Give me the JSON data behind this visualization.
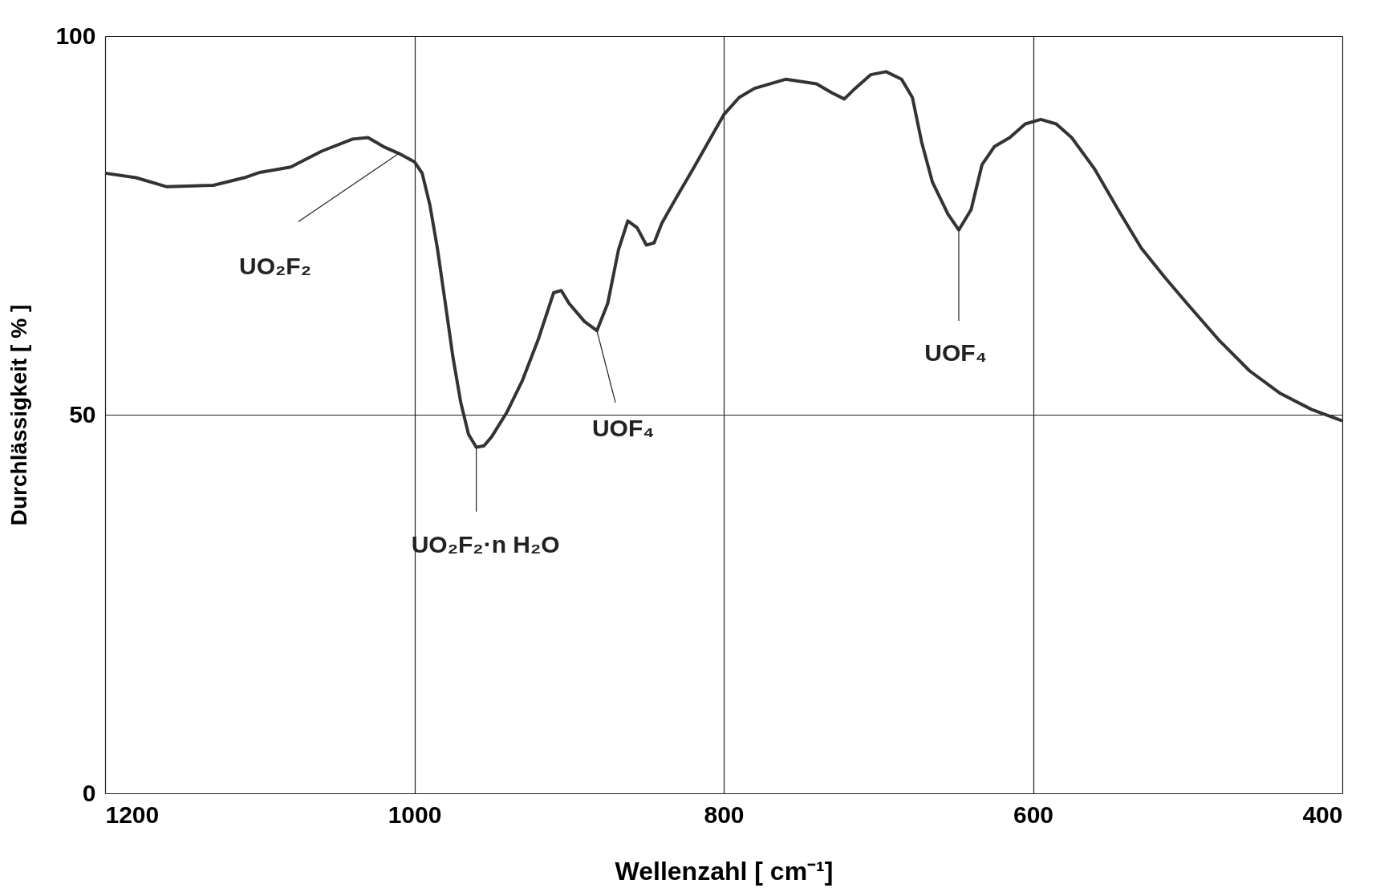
{
  "chart_data": {
    "type": "line",
    "xlabel": "Wellenzahl [ cm⁻¹]",
    "ylabel": "Durchlässigkeit [ % ]",
    "xlim": [
      1200,
      400
    ],
    "ylim": [
      0,
      100
    ],
    "xticks": [
      1200,
      1000,
      800,
      600,
      400
    ],
    "yticks": [
      0,
      50,
      100
    ],
    "grid": true,
    "marker": "none",
    "line_style": "solid",
    "x": [
      1200,
      1180,
      1160,
      1130,
      1110,
      1100,
      1080,
      1060,
      1040,
      1030,
      1020,
      1010,
      1000,
      995,
      990,
      985,
      980,
      975,
      970,
      965,
      960,
      955,
      950,
      940,
      930,
      920,
      910,
      905,
      900,
      890,
      882,
      875,
      868,
      862,
      856,
      850,
      845,
      840,
      830,
      820,
      810,
      800,
      790,
      780,
      760,
      740,
      730,
      722,
      715,
      705,
      695,
      685,
      678,
      672,
      665,
      655,
      648,
      640,
      633,
      625,
      615,
      605,
      595,
      585,
      575,
      560,
      545,
      530,
      515,
      500,
      480,
      460,
      440,
      420,
      400
    ],
    "series": [
      {
        "color": "#333333",
        "values": [
          81.9,
          81.3,
          80.1,
          80.3,
          81.3,
          82.0,
          82.7,
          84.8,
          86.4,
          86.6,
          85.4,
          84.5,
          83.4,
          81.9,
          77.7,
          71.8,
          64.7,
          57.5,
          51.6,
          47.4,
          45.7,
          45.9,
          47.1,
          50.4,
          54.6,
          59.9,
          66.1,
          66.4,
          64.7,
          62.3,
          61.1,
          64.7,
          71.8,
          75.6,
          74.7,
          72.4,
          72.7,
          75.3,
          78.9,
          82.4,
          86.0,
          89.6,
          91.9,
          93.1,
          94.3,
          93.7,
          92.5,
          91.7,
          93.1,
          94.9,
          95.3,
          94.3,
          91.9,
          86.0,
          80.7,
          76.5,
          74.4,
          77.1,
          83.0,
          85.4,
          86.6,
          88.4,
          89.0,
          88.4,
          86.6,
          82.4,
          77.1,
          72.0,
          68.2,
          64.6,
          59.9,
          55.8,
          52.8,
          50.7,
          49.2
        ]
      }
    ],
    "annotations": [
      {
        "text": "UO₂F₂",
        "x": 1010,
        "y": 84.5
      },
      {
        "text": "UO₂F₂·n H₂O",
        "x": 960,
        "y": 45.7
      },
      {
        "text": "UOF₄",
        "x": 882,
        "y": 61.1
      },
      {
        "text": "UOF₄",
        "x": 648,
        "y": 74.4
      }
    ]
  }
}
